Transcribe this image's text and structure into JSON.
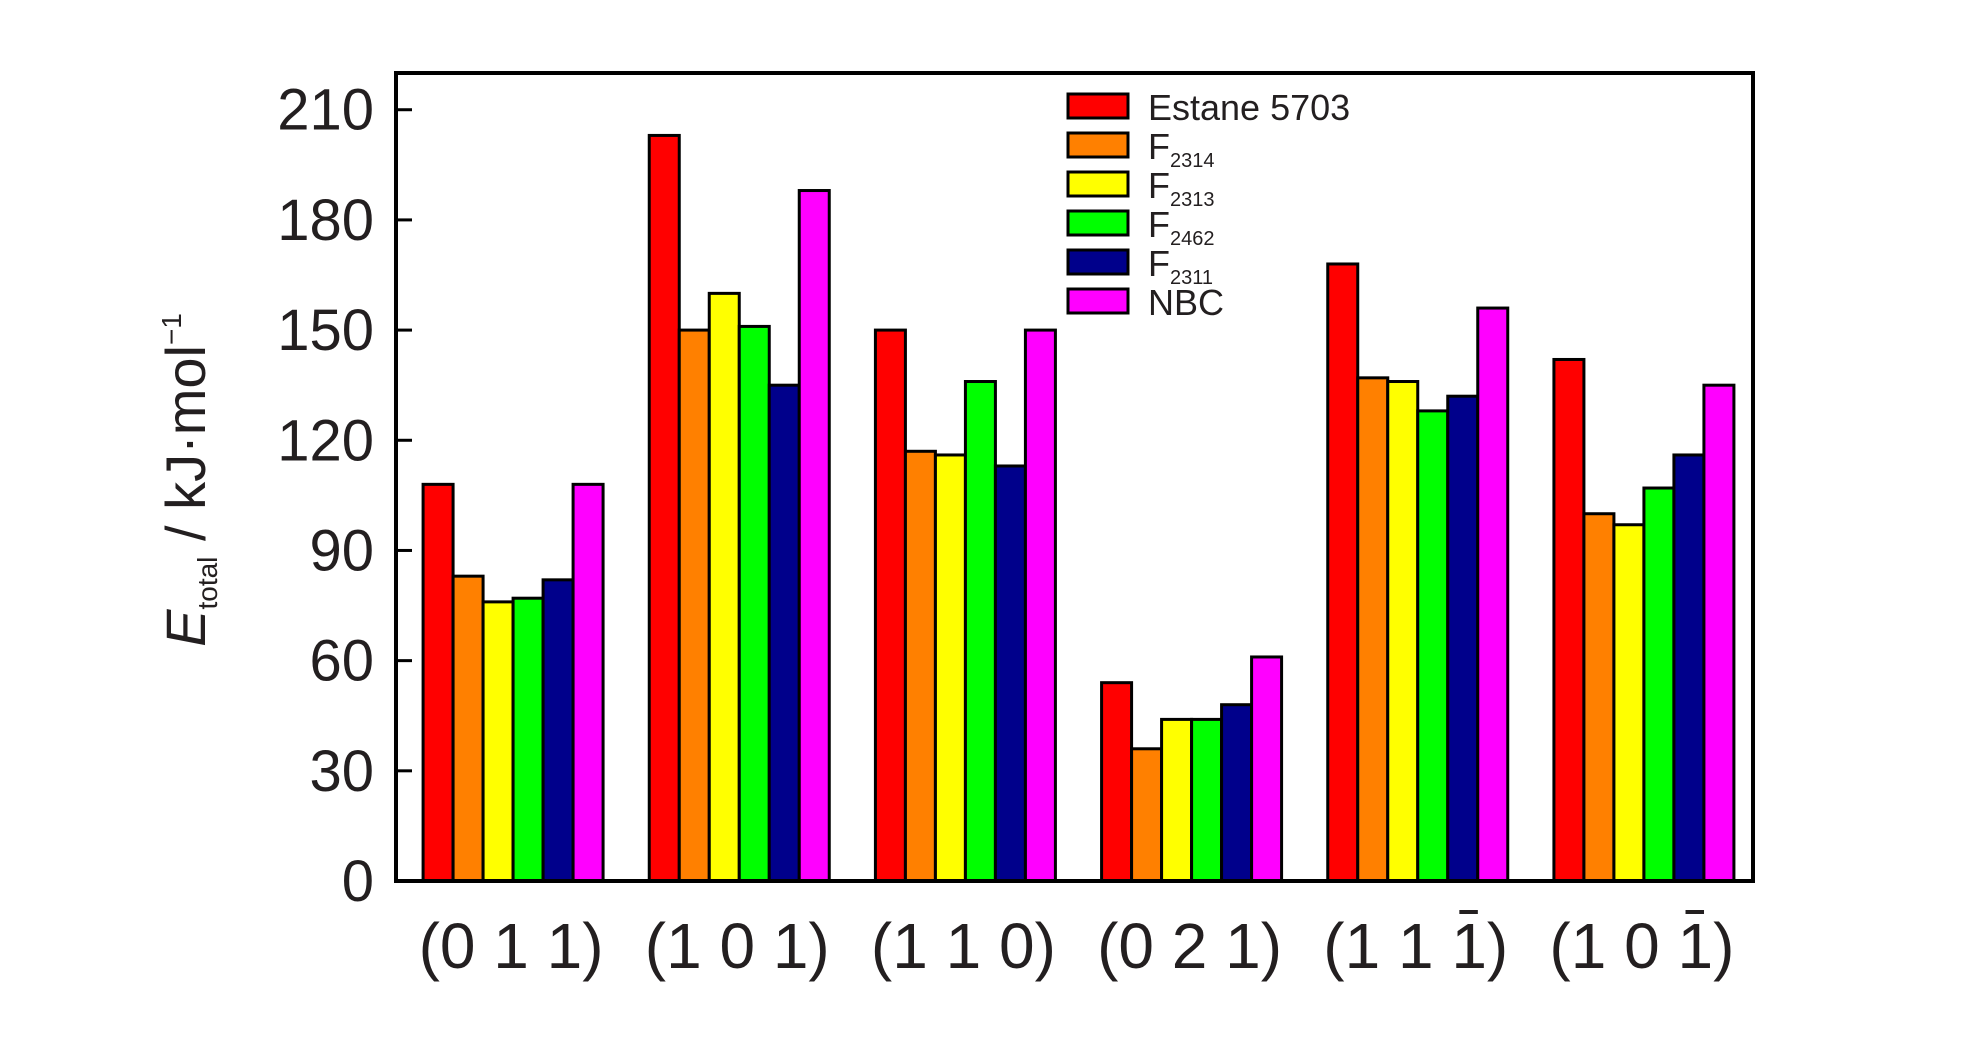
{
  "chart_data": {
    "type": "bar",
    "categories": [
      {
        "label": "(0 1 1)",
        "bar_index": null
      },
      {
        "label": "(1 0 1)",
        "bar_index": null
      },
      {
        "label": "(1 1 0)",
        "bar_index": null
      },
      {
        "label": "(0 2 1)",
        "bar_index": null
      },
      {
        "label": "(1 1 1)",
        "bar_index": 2
      },
      {
        "label": "(1 0 1)",
        "bar_index": 2
      }
    ],
    "series": [
      {
        "name": "Estane 5703",
        "base": "Estane 5703",
        "sub": "",
        "color": "#ff0000",
        "values": [
          108,
          203,
          150,
          54,
          168,
          142
        ]
      },
      {
        "name": "F2314",
        "base": "F",
        "sub": "2314",
        "color": "#ff8000",
        "values": [
          83,
          150,
          117,
          36,
          137,
          100
        ]
      },
      {
        "name": "F2313",
        "base": "F",
        "sub": "2313",
        "color": "#ffff00",
        "values": [
          76,
          160,
          116,
          44,
          136,
          97
        ]
      },
      {
        "name": "F2462",
        "base": "F",
        "sub": "2462",
        "color": "#00ff00",
        "values": [
          77,
          151,
          136,
          44,
          128,
          107
        ]
      },
      {
        "name": "F2311",
        "base": "F",
        "sub": "2311",
        "color": "#00008b",
        "values": [
          82,
          135,
          113,
          48,
          132,
          116
        ]
      },
      {
        "name": "NBC",
        "base": "NBC",
        "sub": "",
        "color": "#ff00ff",
        "values": [
          108,
          188,
          150,
          61,
          156,
          135
        ]
      }
    ],
    "ylabel": {
      "symbol": "E",
      "sub": "total",
      "unit": " / kJ·mol",
      "sup": "−1"
    },
    "ylim": [
      0,
      220
    ],
    "yticks": [
      0,
      30,
      60,
      90,
      120,
      150,
      180,
      210
    ],
    "grid": false,
    "legend_position": "top-center"
  }
}
